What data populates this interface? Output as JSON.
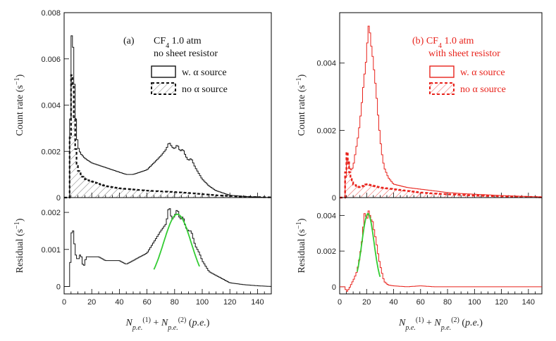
{
  "chart_data": [
    {
      "panel": "(a)",
      "type": "histogram",
      "color": "#111111",
      "annotation": [
        "(a)",
        "CF4 1.0 atm",
        "no sheet resistor"
      ],
      "xlabel": "N_p.e.^(1) + N_p.e.^(2) (p.e.)",
      "top": {
        "ylabel": "Count rate (s^-1)",
        "xlim": [
          0,
          150
        ],
        "ylim": [
          0,
          0.008
        ],
        "yticks": [
          "0",
          "0.002",
          "0.004",
          "0.006",
          "0.008"
        ],
        "legend": [
          "w. α source",
          "no α source"
        ],
        "series": [
          {
            "name": "w. α source",
            "style": "solid",
            "points": [
              [
                4,
                0
              ],
              [
                5,
                0.0068
              ],
              [
                6,
                0.0072
              ],
              [
                7,
                0.0058
              ],
              [
                8,
                0.004
              ],
              [
                9,
                0.0028
              ],
              [
                10,
                0.0022
              ],
              [
                12,
                0.0019
              ],
              [
                15,
                0.0017
              ],
              [
                20,
                0.0015
              ],
              [
                25,
                0.0014
              ],
              [
                30,
                0.0013
              ],
              [
                35,
                0.0012
              ],
              [
                40,
                0.0011
              ],
              [
                45,
                0.001
              ],
              [
                50,
                0.001
              ],
              [
                55,
                0.0011
              ],
              [
                60,
                0.0012
              ],
              [
                65,
                0.0015
              ],
              [
                70,
                0.0018
              ],
              [
                74,
                0.0021
              ],
              [
                76,
                0.0024
              ],
              [
                78,
                0.0022
              ],
              [
                80,
                0.0021
              ],
              [
                82,
                0.0023
              ],
              [
                84,
                0.002
              ],
              [
                86,
                0.0021
              ],
              [
                88,
                0.0018
              ],
              [
                90,
                0.0016
              ],
              [
                92,
                0.0017
              ],
              [
                95,
                0.0013
              ],
              [
                98,
                0.001
              ],
              [
                100,
                0.0008
              ],
              [
                105,
                0.0005
              ],
              [
                110,
                0.0003
              ],
              [
                115,
                0.0002
              ],
              [
                120,
                0.0001
              ],
              [
                130,
                5e-05
              ],
              [
                140,
                2e-05
              ],
              [
                150,
                0
              ]
            ]
          },
          {
            "name": "no α source",
            "style": "dashed",
            "points": [
              [
                4,
                0
              ],
              [
                5,
                0.0052
              ],
              [
                6,
                0.0054
              ],
              [
                7,
                0.0042
              ],
              [
                8,
                0.0026
              ],
              [
                9,
                0.0016
              ],
              [
                10,
                0.0012
              ],
              [
                12,
                0.001
              ],
              [
                15,
                0.0008
              ],
              [
                20,
                0.0007
              ],
              [
                25,
                0.0006
              ],
              [
                30,
                0.0005
              ],
              [
                40,
                0.0004
              ],
              [
                50,
                0.00035
              ],
              [
                60,
                0.0003
              ],
              [
                70,
                0.00027
              ],
              [
                80,
                0.00024
              ],
              [
                90,
                0.0002
              ],
              [
                100,
                0.00015
              ],
              [
                110,
                0.0001
              ],
              [
                120,
                7e-05
              ],
              [
                130,
                4e-05
              ],
              [
                140,
                2e-05
              ],
              [
                150,
                1e-05
              ]
            ]
          }
        ]
      },
      "bottom": {
        "ylabel": "Residual (s^-1)",
        "xlim": [
          0,
          150
        ],
        "ylim": [
          -0.0002,
          0.0024
        ],
        "yticks": [
          "0",
          "0.001",
          "0.002"
        ],
        "xticks": [
          "0",
          "20",
          "40",
          "60",
          "80",
          "100",
          "120",
          "140"
        ],
        "series": [
          {
            "name": "",
            "style": "solid",
            "points": [
              [
                4,
                0
              ],
              [
                5,
                0.0013
              ],
              [
                6,
                0.0016
              ],
              [
                7,
                0.0014
              ],
              [
                8,
                0.0009
              ],
              [
                10,
                0.0007
              ],
              [
                12,
                0.0009
              ],
              [
                14,
                0.0005
              ],
              [
                16,
                0.0008
              ],
              [
                20,
                0.0008
              ],
              [
                25,
                0.0008
              ],
              [
                30,
                0.0007
              ],
              [
                35,
                0.0007
              ],
              [
                40,
                0.0007
              ],
              [
                45,
                0.0006
              ],
              [
                50,
                0.0007
              ],
              [
                55,
                0.0008
              ],
              [
                60,
                0.0009
              ],
              [
                65,
                0.0012
              ],
              [
                70,
                0.0015
              ],
              [
                74,
                0.0017
              ],
              [
                76,
                0.0022
              ],
              [
                78,
                0.0018
              ],
              [
                80,
                0.0019
              ],
              [
                82,
                0.0021
              ],
              [
                84,
                0.0018
              ],
              [
                86,
                0.0019
              ],
              [
                88,
                0.0016
              ],
              [
                90,
                0.0015
              ],
              [
                92,
                0.0015
              ],
              [
                95,
                0.0011
              ],
              [
                98,
                0.0009
              ],
              [
                100,
                0.0007
              ],
              [
                105,
                0.0004
              ],
              [
                110,
                0.0003
              ],
              [
                115,
                0.0002
              ],
              [
                120,
                0.0001
              ],
              [
                130,
                5e-05
              ],
              [
                140,
                2e-05
              ],
              [
                150,
                0
              ]
            ]
          }
        ],
        "fit": {
          "mu": 82,
          "sigma": 10,
          "amp": 0.00195,
          "range": [
            65,
            98
          ],
          "color": "#33cc33"
        }
      }
    },
    {
      "panel": "(b)",
      "type": "histogram",
      "color": "#e8221b",
      "annotation": [
        "(b) CF4 1.0 atm",
        "with sheet resistor"
      ],
      "xlabel": "N_p.e.^(1) + N_p.e.^(2) (p.e.)",
      "top": {
        "ylabel": "Count rate (s^-1)",
        "xlim": [
          0,
          150
        ],
        "ylim": [
          0,
          0.0055
        ],
        "yticks": [
          "0",
          "0.002",
          "0.004"
        ],
        "legend": [
          "w. α source",
          "no α source"
        ],
        "series": [
          {
            "name": "w. α source",
            "style": "solid",
            "points": [
              [
                4,
                0
              ],
              [
                5,
                0.0012
              ],
              [
                8,
                0.0008
              ],
              [
                10,
                0.0009
              ],
              [
                12,
                0.0014
              ],
              [
                14,
                0.0019
              ],
              [
                16,
                0.0026
              ],
              [
                18,
                0.0035
              ],
              [
                20,
                0.0042
              ],
              [
                21,
                0.005
              ],
              [
                22,
                0.0052
              ],
              [
                23,
                0.0046
              ],
              [
                24,
                0.0044
              ],
              [
                25,
                0.004
              ],
              [
                27,
                0.0032
              ],
              [
                29,
                0.0022
              ],
              [
                31,
                0.0014
              ],
              [
                33,
                0.0009
              ],
              [
                36,
                0.0006
              ],
              [
                40,
                0.0004
              ],
              [
                50,
                0.0003
              ],
              [
                60,
                0.00025
              ],
              [
                70,
                0.0002
              ],
              [
                80,
                0.00015
              ],
              [
                90,
                0.00012
              ],
              [
                100,
                0.0001
              ],
              [
                120,
                6e-05
              ],
              [
                140,
                3e-05
              ],
              [
                150,
                2e-05
              ]
            ]
          },
          {
            "name": "no α source",
            "style": "dashed",
            "points": [
              [
                4,
                0
              ],
              [
                5,
                0.0015
              ],
              [
                6,
                0.0012
              ],
              [
                7,
                0.0009
              ],
              [
                8,
                0.0006
              ],
              [
                10,
                0.0004
              ],
              [
                15,
                0.0003
              ],
              [
                20,
                0.0004
              ],
              [
                25,
                0.00035
              ],
              [
                30,
                0.0003
              ],
              [
                40,
                0.00025
              ],
              [
                50,
                0.0002
              ],
              [
                60,
                0.00015
              ],
              [
                70,
                0.00012
              ],
              [
                80,
                0.0001
              ],
              [
                90,
                8e-05
              ],
              [
                100,
                6e-05
              ],
              [
                120,
                4e-05
              ],
              [
                140,
                2e-05
              ],
              [
                150,
                1e-05
              ]
            ]
          }
        ]
      },
      "bottom": {
        "ylabel": "Residual (s^-1)",
        "xlim": [
          0,
          150
        ],
        "ylim": [
          -0.0004,
          0.005
        ],
        "yticks": [
          "0",
          "0.002",
          "0.004"
        ],
        "xticks": [
          "0",
          "20",
          "40",
          "60",
          "80",
          "100",
          "120",
          "140"
        ],
        "series": [
          {
            "name": "",
            "style": "solid",
            "points": [
              [
                4,
                0
              ],
              [
                5,
                -0.0003
              ],
              [
                7,
                -0.0001
              ],
              [
                9,
                0.0002
              ],
              [
                11,
                0.0005
              ],
              [
                13,
                0.0009
              ],
              [
                15,
                0.0017
              ],
              [
                17,
                0.0028
              ],
              [
                18,
                0.0039
              ],
              [
                19,
                0.0043
              ],
              [
                20,
                0.0036
              ],
              [
                21,
                0.0041
              ],
              [
                22,
                0.0044
              ],
              [
                23,
                0.0036
              ],
              [
                24,
                0.0039
              ],
              [
                25,
                0.0034
              ],
              [
                27,
                0.0026
              ],
              [
                29,
                0.0016
              ],
              [
                31,
                0.0009
              ],
              [
                33,
                0.0003
              ],
              [
                36,
                0.0001
              ],
              [
                40,
                5e-05
              ],
              [
                50,
                0
              ],
              [
                60,
                5e-05
              ],
              [
                70,
                0
              ],
              [
                80,
                0
              ],
              [
                100,
                0
              ],
              [
                120,
                0
              ],
              [
                140,
                0
              ],
              [
                150,
                0
              ]
            ]
          }
        ],
        "fit": {
          "mu": 21,
          "sigma": 4.5,
          "amp": 0.0041,
          "range": [
            13,
            30
          ],
          "color": "#33cc33"
        }
      }
    }
  ]
}
